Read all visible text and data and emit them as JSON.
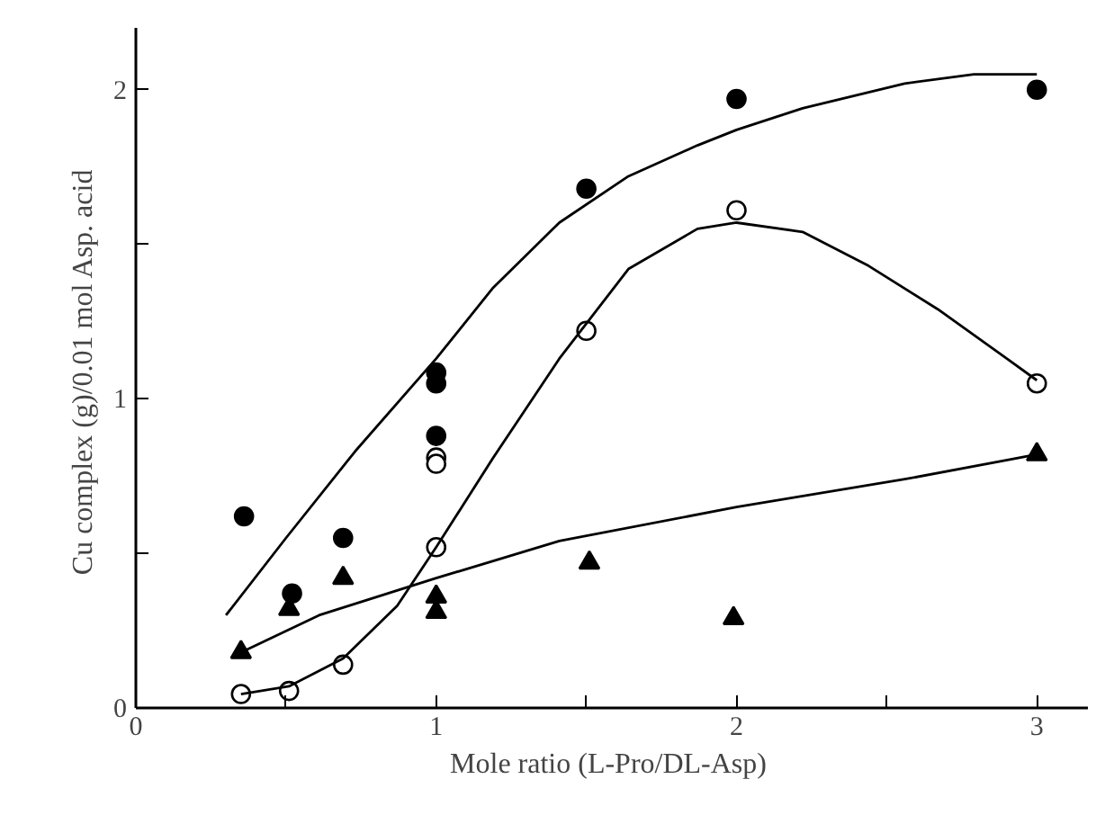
{
  "chart_data": {
    "type": "scatter",
    "xlabel": "Mole ratio  (L-Pro/DL-Asp)",
    "ylabel": "Cu complex  (g)/0.01 mol Asp. acid",
    "xlim": [
      0,
      3.17
    ],
    "ylim": [
      0,
      2.2
    ],
    "xticks": [
      0,
      {
        "value": 0.5,
        "label": null
      },
      1,
      {
        "value": 1.5,
        "label": null
      },
      2,
      {
        "value": 2.5,
        "label": null
      },
      3
    ],
    "yticks": [
      0,
      {
        "value": 0.5,
        "label": null
      },
      1,
      {
        "value": 1.5,
        "label": null
      },
      2
    ],
    "grid": false,
    "series": [
      {
        "marker": "circle",
        "color": "#000000",
        "x": [
          0.36,
          0.52,
          0.69,
          1.0,
          1.0,
          1.0,
          1.5,
          2.0,
          3.0
        ],
        "values": [
          0.62,
          0.37,
          0.55,
          1.085,
          1.05,
          0.88,
          1.68,
          1.97,
          2.0
        ]
      },
      {
        "marker": "circle",
        "color": "#ffffff",
        "x": [
          0.35,
          0.51,
          0.69,
          1.0,
          1.0,
          1.0,
          1.5,
          2.0,
          3.0
        ],
        "values": [
          0.045,
          0.055,
          0.14,
          0.81,
          0.79,
          0.52,
          1.22,
          1.61,
          1.05
        ]
      },
      {
        "marker": "triangle",
        "color": "#000000",
        "x": [
          0.35,
          0.51,
          0.69,
          1.0,
          1.0,
          1.51,
          1.99,
          3.0
        ],
        "values": [
          0.18,
          0.32,
          0.42,
          0.36,
          0.31,
          0.47,
          0.29,
          0.82
        ]
      },
      {
        "type": "line",
        "marker": "none",
        "line_style": "solid",
        "color": "#000000",
        "x": [
          0.3,
          0.5,
          0.73,
          1.0,
          1.19,
          1.41,
          1.64,
          1.87,
          2.0,
          2.22,
          2.56,
          2.79,
          3.0
        ],
        "values": [
          0.3,
          0.55,
          0.83,
          1.13,
          1.36,
          1.57,
          1.72,
          1.82,
          1.87,
          1.94,
          2.02,
          2.05,
          2.05
        ]
      },
      {
        "type": "line",
        "marker": "none",
        "line_style": "solid",
        "color": "#000000",
        "x": [
          0.35,
          0.51,
          0.69,
          0.87,
          1.0,
          1.19,
          1.41,
          1.64,
          1.87,
          2.0,
          2.22,
          2.44,
          2.67,
          2.9,
          3.0
        ],
        "values": [
          0.045,
          0.07,
          0.16,
          0.33,
          0.52,
          0.81,
          1.13,
          1.42,
          1.55,
          1.57,
          1.54,
          1.43,
          1.29,
          1.13,
          1.06
        ]
      },
      {
        "type": "line",
        "marker": "none",
        "line_style": "solid",
        "color": "#000000",
        "x": [
          0.35,
          0.61,
          1.0,
          1.41,
          2.0,
          2.56,
          3.0
        ],
        "values": [
          0.18,
          0.3,
          0.42,
          0.54,
          0.65,
          0.74,
          0.82
        ]
      }
    ]
  }
}
